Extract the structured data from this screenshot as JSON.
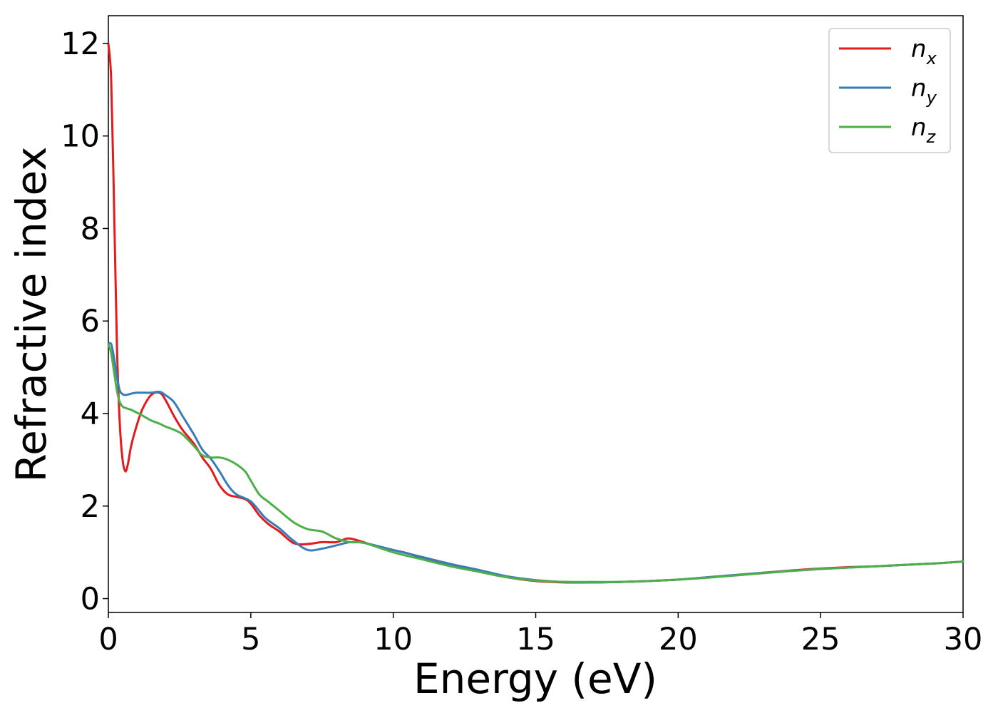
{
  "chart_data": {
    "type": "line",
    "title": "",
    "xlabel": "Energy (eV)",
    "ylabel": "Refractive index",
    "xlim": [
      0,
      30
    ],
    "ylim": [
      -0.3,
      12.6
    ],
    "xticks": [
      0,
      5,
      10,
      15,
      20,
      25,
      30
    ],
    "xtick_labels": [
      "0",
      "5",
      "10",
      "15",
      "20",
      "25",
      "30"
    ],
    "yticks": [
      0,
      2,
      4,
      6,
      8,
      10,
      12
    ],
    "ytick_labels": [
      "0",
      "2",
      "4",
      "6",
      "8",
      "10",
      "12"
    ],
    "grid": false,
    "legend_position": "top-right",
    "series": [
      {
        "name": "n_x",
        "legend_base": "n",
        "legend_sub": "x",
        "color": "#e41a1c",
        "x": [
          0,
          0.1,
          0.2,
          0.3,
          0.4,
          0.5,
          0.6,
          0.7,
          0.8,
          1.0,
          1.2,
          1.5,
          1.8,
          2.0,
          2.3,
          2.6,
          3.0,
          3.3,
          3.6,
          3.9,
          4.2,
          4.5,
          4.8,
          5.0,
          5.3,
          5.6,
          6.0,
          6.5,
          7.0,
          7.5,
          8.0,
          8.4,
          8.8,
          9.3,
          10.0,
          10.5,
          11.0,
          12.0,
          13.0,
          14.0,
          15.0,
          16.0,
          17.0,
          18.0,
          19.0,
          20.0,
          21.0,
          22.0,
          23.0,
          24.0,
          25.0,
          26.0,
          27.0,
          28.0,
          29.0,
          30.0
        ],
        "y": [
          12.0,
          11.2,
          8.5,
          5.5,
          3.8,
          3.0,
          2.75,
          2.95,
          3.3,
          3.75,
          4.1,
          4.4,
          4.45,
          4.3,
          3.95,
          3.65,
          3.35,
          3.05,
          2.8,
          2.45,
          2.25,
          2.2,
          2.15,
          2.05,
          1.8,
          1.62,
          1.45,
          1.2,
          1.18,
          1.22,
          1.22,
          1.3,
          1.25,
          1.15,
          1.05,
          0.98,
          0.88,
          0.72,
          0.6,
          0.46,
          0.38,
          0.35,
          0.35,
          0.36,
          0.38,
          0.41,
          0.46,
          0.51,
          0.56,
          0.61,
          0.65,
          0.68,
          0.7,
          0.73,
          0.76,
          0.8
        ]
      },
      {
        "name": "n_y",
        "legend_base": "n",
        "legend_sub": "y",
        "color": "#377eb8",
        "x": [
          0,
          0.1,
          0.2,
          0.3,
          0.4,
          0.5,
          0.6,
          0.8,
          1.0,
          1.3,
          1.5,
          1.8,
          2.0,
          2.3,
          2.6,
          3.0,
          3.3,
          3.6,
          3.9,
          4.2,
          4.5,
          5.0,
          5.5,
          6.0,
          6.5,
          7.0,
          7.5,
          8.0,
          8.5,
          9.0,
          10.0,
          11.0,
          12.0,
          13.0,
          14.0,
          15.0,
          16.0,
          17.0,
          18.0,
          19.0,
          20.0,
          21.0,
          22.0,
          23.0,
          24.0,
          25.0,
          26.0,
          27.0,
          28.0,
          29.0,
          30.0
        ],
        "y": [
          5.5,
          5.5,
          5.2,
          4.8,
          4.5,
          4.42,
          4.4,
          4.43,
          4.45,
          4.45,
          4.45,
          4.47,
          4.4,
          4.25,
          3.95,
          3.55,
          3.22,
          3.02,
          2.75,
          2.45,
          2.25,
          2.1,
          1.75,
          1.52,
          1.25,
          1.05,
          1.08,
          1.15,
          1.22,
          1.2,
          1.05,
          0.9,
          0.75,
          0.62,
          0.48,
          0.4,
          0.36,
          0.35,
          0.36,
          0.38,
          0.41,
          0.46,
          0.51,
          0.56,
          0.6,
          0.64,
          0.67,
          0.7,
          0.73,
          0.76,
          0.8
        ]
      },
      {
        "name": "n_z",
        "legend_base": "n",
        "legend_sub": "z",
        "color": "#4daf4a",
        "x": [
          0,
          0.1,
          0.2,
          0.3,
          0.4,
          0.5,
          0.6,
          0.8,
          1.0,
          1.3,
          1.5,
          1.8,
          2.0,
          2.3,
          2.6,
          3.0,
          3.3,
          3.6,
          3.9,
          4.2,
          4.5,
          4.8,
          5.0,
          5.3,
          5.6,
          6.0,
          6.5,
          7.0,
          7.5,
          8.0,
          8.5,
          9.0,
          10.0,
          11.0,
          12.0,
          13.0,
          14.0,
          15.0,
          16.0,
          17.0,
          18.0,
          19.0,
          20.0,
          21.0,
          22.0,
          23.0,
          24.0,
          25.0,
          26.0,
          27.0,
          28.0,
          29.0,
          30.0
        ],
        "y": [
          5.5,
          5.3,
          4.9,
          4.5,
          4.25,
          4.15,
          4.12,
          4.08,
          4.02,
          3.92,
          3.85,
          3.78,
          3.72,
          3.65,
          3.55,
          3.3,
          3.1,
          3.05,
          3.05,
          3.0,
          2.9,
          2.75,
          2.55,
          2.25,
          2.1,
          1.9,
          1.65,
          1.5,
          1.45,
          1.3,
          1.22,
          1.2,
          1.0,
          0.85,
          0.7,
          0.58,
          0.46,
          0.39,
          0.36,
          0.36,
          0.36,
          0.38,
          0.41,
          0.45,
          0.5,
          0.55,
          0.6,
          0.64,
          0.67,
          0.7,
          0.73,
          0.76,
          0.8
        ]
      }
    ]
  }
}
